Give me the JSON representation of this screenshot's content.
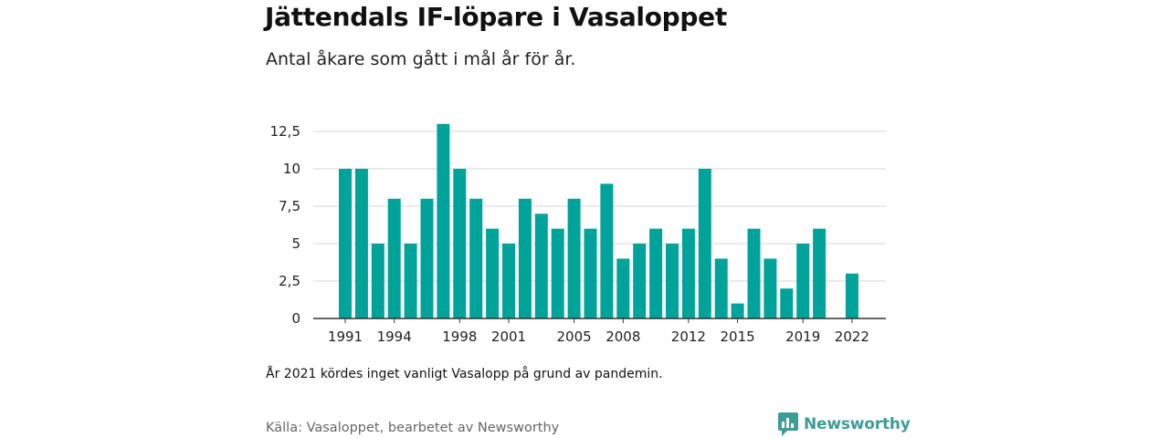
{
  "header": {
    "title": "Jättendals IF-löpare i Vasaloppet",
    "subtitle": "Antal åkare som gått i mål år för år."
  },
  "chart_data": {
    "type": "bar",
    "categories": [
      "1991",
      "1992",
      "1993",
      "1994",
      "1995",
      "1996",
      "1997",
      "1998",
      "1999",
      "2000",
      "2001",
      "2002",
      "2003",
      "2004",
      "2005",
      "2006",
      "2007",
      "2008",
      "2009",
      "2010",
      "2011",
      "2012",
      "2013",
      "2014",
      "2015",
      "2016",
      "2017",
      "2018",
      "2019",
      "2020",
      "2021",
      "2022"
    ],
    "values": [
      10,
      10,
      5,
      8,
      5,
      8,
      13,
      10,
      8,
      6,
      5,
      8,
      7,
      6,
      8,
      6,
      9,
      4,
      5,
      6,
      5,
      6,
      10,
      4,
      1,
      6,
      4,
      2,
      5,
      6,
      null,
      3
    ],
    "x_tick_labels": [
      "1991",
      "1994",
      "1998",
      "2001",
      "2005",
      "2008",
      "2012",
      "2015",
      "2019",
      "2022"
    ],
    "y_ticks": [
      0,
      2.5,
      5,
      7.5,
      10,
      12.5
    ],
    "y_tick_labels": [
      "0",
      "2,5",
      "5",
      "7,5",
      "10",
      "12,5"
    ],
    "ylim": [
      0,
      13
    ],
    "grid": true,
    "legend": "none",
    "bar_color": "#00a39a",
    "xlabel": "",
    "ylabel": ""
  },
  "footer": {
    "note": "År 2021 kördes inget vanligt Vasalopp på grund av pandemin.",
    "source": "Källa: Vasaloppet, bearbetet av Newsworthy",
    "brand": "Newsworthy",
    "brand_icon": "newsworthy-logo-icon",
    "brand_color": "#3d9c96"
  }
}
